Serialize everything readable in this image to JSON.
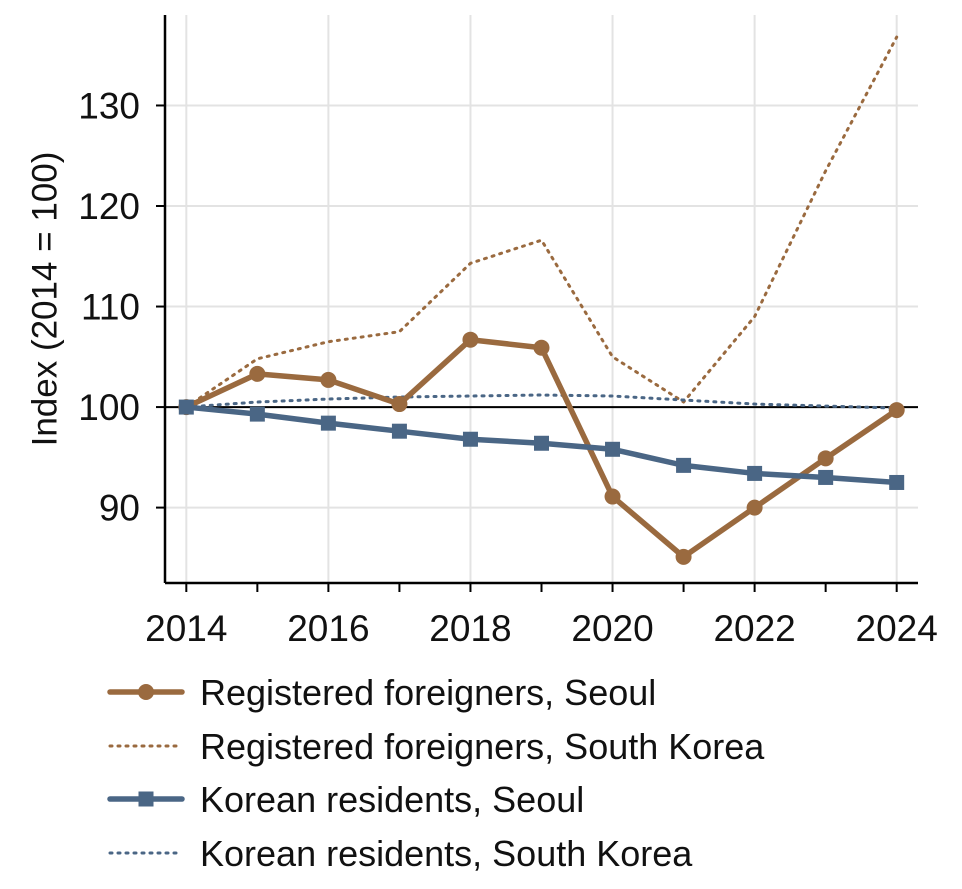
{
  "chart_data": {
    "type": "line",
    "title": "",
    "xlabel": "",
    "ylabel": "Index (2014 = 100)",
    "x": [
      2014,
      2015,
      2016,
      2017,
      2018,
      2019,
      2020,
      2021,
      2022,
      2023,
      2024
    ],
    "xlim": [
      2013.7,
      2024.3
    ],
    "ylim": [
      82.5,
      139
    ],
    "xticks": [
      "2014",
      "2016",
      "2018",
      "2020",
      "2022",
      "2024"
    ],
    "yticks": [
      "90",
      "100",
      "110",
      "120",
      "130"
    ],
    "grid": true,
    "reference_line": 100,
    "legend_position": "below",
    "series": [
      {
        "name": "Registered foreigners, Seoul",
        "color": "#9a6a3f",
        "style": "solid",
        "marker": "circle",
        "values": [
          100,
          103.3,
          102.7,
          100.3,
          106.7,
          105.9,
          91.1,
          85.1,
          90.0,
          94.9,
          99.7
        ]
      },
      {
        "name": "Registered foreigners, South Korea",
        "color": "#9a6a3f",
        "style": "dotted",
        "marker": "none",
        "values": [
          100,
          104.8,
          106.5,
          107.5,
          114.3,
          116.6,
          105.0,
          100.5,
          109.0,
          123.5,
          136.8
        ]
      },
      {
        "name": "Korean residents, Seoul",
        "color": "#4a6685",
        "style": "solid",
        "marker": "square",
        "values": [
          100,
          99.3,
          98.4,
          97.6,
          96.8,
          96.4,
          95.8,
          94.2,
          93.4,
          93.0,
          92.5
        ]
      },
      {
        "name": "Korean residents, South Korea",
        "color": "#4a6685",
        "style": "dotted",
        "marker": "none",
        "values": [
          100,
          100.5,
          100.8,
          101.0,
          101.1,
          101.2,
          101.1,
          100.7,
          100.3,
          100.1,
          99.9
        ]
      }
    ]
  }
}
